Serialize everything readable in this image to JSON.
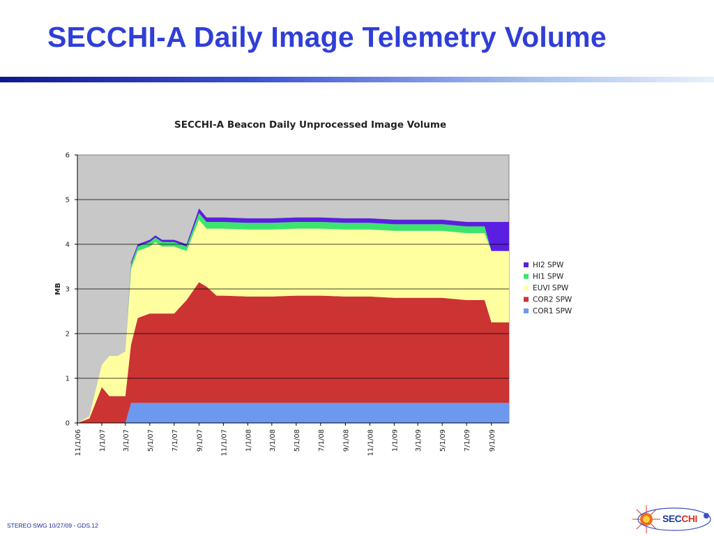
{
  "slide": {
    "title": "SECCHI-A Daily Image Telemetry Volume",
    "footer": "STEREO SWG 10/27/09 - GDS.12",
    "logo_text_a": "SEC",
    "logo_text_b": "CHI"
  },
  "colors": {
    "title": "#2f3ed8",
    "plot_background": "#c8c8c8",
    "HI2 SPW": "#5a1fe0",
    "HI1 SPW": "#3ee36e",
    "EUVI SPW": "#ffffa0",
    "COR2 SPW": "#cc3333",
    "COR1 SPW": "#6c98ee"
  },
  "chart_data": {
    "type": "area",
    "stacked": true,
    "title": "SECCHI-A Beacon Daily Unprocessed Image Volume",
    "xlabel": "",
    "ylabel": "MB",
    "ylim": [
      0,
      6
    ],
    "yticks": [
      "0",
      "1",
      "2",
      "3",
      "4",
      "5",
      "6"
    ],
    "xlim": [
      "2006-11-01",
      "2009-10-15"
    ],
    "xtick_labels": [
      "11/1/06",
      "1/1/07",
      "3/1/07",
      "5/1/07",
      "7/1/07",
      "9/1/07",
      "11/1/07",
      "1/1/08",
      "3/1/08",
      "5/1/08",
      "7/1/08",
      "9/1/08",
      "11/1/08",
      "1/1/09",
      "3/1/09",
      "5/1/09",
      "7/1/09",
      "9/1/09"
    ],
    "xtick_dates": [
      "2006-11-01",
      "2007-01-01",
      "2007-03-01",
      "2007-05-01",
      "2007-07-01",
      "2007-09-01",
      "2007-11-01",
      "2008-01-01",
      "2008-03-01",
      "2008-05-01",
      "2008-07-01",
      "2008-09-01",
      "2008-11-01",
      "2009-01-01",
      "2009-03-01",
      "2009-05-01",
      "2009-07-01",
      "2009-09-01"
    ],
    "grid": "horizontal",
    "legend_position": "right",
    "legend": [
      "HI2 SPW",
      "HI1 SPW",
      "EUVI SPW",
      "COR2 SPW",
      "COR1 SPW"
    ],
    "x": [
      "2006-11-01",
      "2006-12-01",
      "2007-01-01",
      "2007-01-20",
      "2007-02-10",
      "2007-03-01",
      "2007-03-15",
      "2007-04-01",
      "2007-05-01",
      "2007-05-15",
      "2007-06-01",
      "2007-07-01",
      "2007-08-01",
      "2007-09-01",
      "2007-09-20",
      "2007-10-15",
      "2007-11-01",
      "2008-01-01",
      "2008-03-01",
      "2008-05-01",
      "2008-07-01",
      "2008-09-01",
      "2008-11-01",
      "2009-01-01",
      "2009-03-01",
      "2009-05-01",
      "2009-07-01",
      "2009-08-15",
      "2009-09-01",
      "2009-10-15"
    ],
    "series": [
      {
        "name": "COR1 SPW",
        "values": [
          0,
          0,
          0,
          0,
          0,
          0,
          0.45,
          0.45,
          0.45,
          0.45,
          0.45,
          0.45,
          0.45,
          0.45,
          0.45,
          0.45,
          0.45,
          0.45,
          0.45,
          0.45,
          0.45,
          0.45,
          0.45,
          0.45,
          0.45,
          0.45,
          0.45,
          0.45,
          0.45,
          0.45
        ]
      },
      {
        "name": "COR2 SPW",
        "values": [
          0,
          0.1,
          0.8,
          0.6,
          0.6,
          0.6,
          1.3,
          1.9,
          2.0,
          2.0,
          2.0,
          2.0,
          2.3,
          2.7,
          2.6,
          2.4,
          2.4,
          2.38,
          2.38,
          2.4,
          2.4,
          2.38,
          2.38,
          2.35,
          2.35,
          2.35,
          2.3,
          2.3,
          1.8,
          1.8
        ]
      },
      {
        "name": "EUVI SPW",
        "values": [
          0,
          0.05,
          0.5,
          0.9,
          0.9,
          1.0,
          1.7,
          1.5,
          1.5,
          1.6,
          1.5,
          1.5,
          1.1,
          1.4,
          1.3,
          1.5,
          1.5,
          1.5,
          1.5,
          1.5,
          1.5,
          1.5,
          1.5,
          1.5,
          1.5,
          1.5,
          1.5,
          1.5,
          1.6,
          1.6
        ]
      },
      {
        "name": "HI1 SPW",
        "values": [
          0,
          0,
          0,
          0,
          0,
          0,
          0.1,
          0.1,
          0.1,
          0.1,
          0.1,
          0.1,
          0.1,
          0.15,
          0.15,
          0.15,
          0.15,
          0.15,
          0.15,
          0.15,
          0.15,
          0.15,
          0.15,
          0.15,
          0.15,
          0.15,
          0.15,
          0.15,
          0,
          0
        ]
      },
      {
        "name": "HI2 SPW",
        "values": [
          0,
          0,
          0,
          0,
          0,
          0,
          0.05,
          0.05,
          0.05,
          0.05,
          0.05,
          0.05,
          0.05,
          0.1,
          0.1,
          0.1,
          0.1,
          0.1,
          0.1,
          0.1,
          0.1,
          0.1,
          0.1,
          0.1,
          0.1,
          0.1,
          0.1,
          0.1,
          0.65,
          0.65
        ]
      }
    ]
  }
}
